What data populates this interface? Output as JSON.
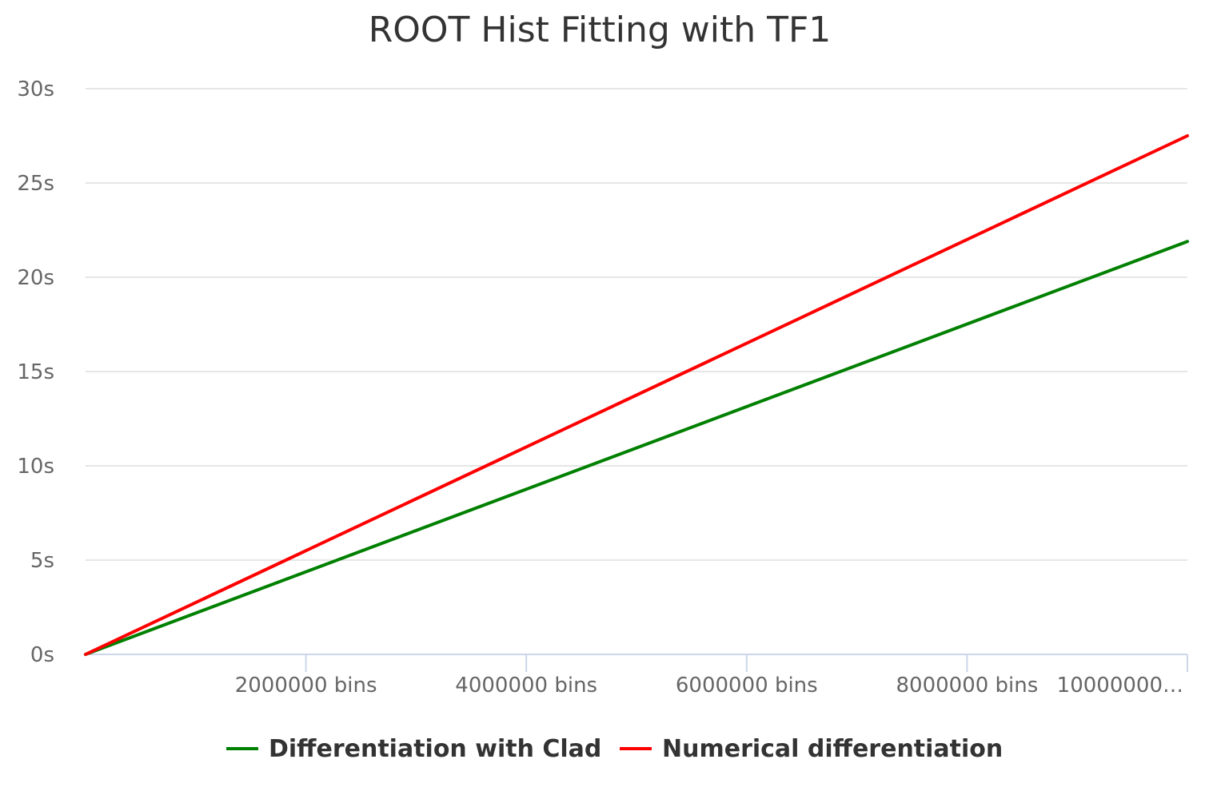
{
  "chart_data": {
    "type": "line",
    "title": "ROOT Hist Fitting with TF1",
    "xlabel": "",
    "ylabel": "",
    "x_ticks": [
      "2000000 bins",
      "4000000 bins",
      "6000000 bins",
      "8000000 bins",
      "10000000…"
    ],
    "x_tick_values": [
      2000000,
      4000000,
      6000000,
      8000000,
      10000000
    ],
    "xlim": [
      0,
      10000000
    ],
    "y_ticks": [
      "0s",
      "5s",
      "10s",
      "15s",
      "20s",
      "25s",
      "30s"
    ],
    "y_tick_values": [
      0,
      5,
      10,
      15,
      20,
      25,
      30
    ],
    "ylim": [
      0,
      30
    ],
    "grid": true,
    "legend_position": "bottom-center",
    "series": [
      {
        "name": "Differentiation with Clad",
        "color": "#008000",
        "x": [
          0,
          10000000
        ],
        "y": [
          0,
          21.9
        ]
      },
      {
        "name": "Numerical differentiation",
        "color": "#ff0000",
        "x": [
          0,
          10000000
        ],
        "y": [
          0,
          27.5
        ]
      }
    ]
  }
}
